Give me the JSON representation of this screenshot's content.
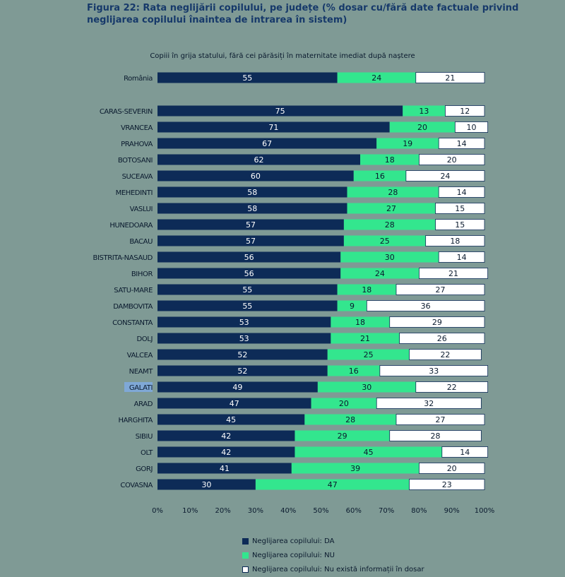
{
  "figure_title": "Figura 22: Rata neglijării copilului, pe județe (% dosar cu/fără date factuale privind neglijarea copilului înaintea de intrarea în sistem)",
  "colors": {
    "background": "#7f9a95",
    "da": "#0d2b57",
    "nu": "#33e68e",
    "none": "#ffffff",
    "da_text": "#ffffff",
    "nu_text": "#0a1a2e",
    "none_text": "#0a1a2e",
    "selected_label_bg": "#7fa8d6"
  },
  "chart_data": {
    "type": "bar",
    "orientation": "horizontal",
    "stacked": "percent",
    "title": "Copiii în grija statului, fără cei părăsiți în maternitate imediat după naștere",
    "categories": [
      "România",
      "CARAS-SEVERIN",
      "VRANCEA",
      "PRAHOVA",
      "BOTOSANI",
      "SUCEAVA",
      "MEHEDINTI",
      "VASLUI",
      "HUNEDOARA",
      "BACAU",
      "BISTRITA-NASAUD",
      "BIHOR",
      "SATU-MARE",
      "DAMBOVITA",
      "CONSTANTA",
      "DOLJ",
      "VALCEA",
      "NEAMT",
      "GALATI",
      "ARAD",
      "HARGHITA",
      "SIBIU",
      "OLT",
      "GORJ",
      "COVASNA"
    ],
    "series": [
      {
        "name": "Neglijarea copilului: DA",
        "values": [
          55,
          75,
          71,
          67,
          62,
          60,
          58,
          58,
          57,
          57,
          56,
          56,
          55,
          55,
          53,
          53,
          52,
          52,
          49,
          47,
          45,
          42,
          42,
          41,
          30
        ]
      },
      {
        "name": "Neglijarea copilului: NU",
        "values": [
          24,
          13,
          20,
          19,
          18,
          16,
          28,
          27,
          28,
          25,
          30,
          24,
          18,
          9,
          18,
          21,
          25,
          16,
          30,
          20,
          28,
          29,
          45,
          39,
          47
        ]
      },
      {
        "name": "Neglijarea copilului: Nu există informații în dosar",
        "values": [
          21,
          12,
          10,
          14,
          20,
          24,
          14,
          15,
          15,
          18,
          14,
          21,
          27,
          36,
          29,
          26,
          22,
          33,
          22,
          32,
          27,
          28,
          14,
          20,
          23
        ]
      }
    ],
    "x_ticks": [
      "0%",
      "10%",
      "20%",
      "30%",
      "40%",
      "50%",
      "60%",
      "70%",
      "80%",
      "90%",
      "100%"
    ],
    "xlim": [
      0,
      100
    ],
    "highlighted_category": "GALATI",
    "legend_position": "bottom",
    "grid": false
  }
}
